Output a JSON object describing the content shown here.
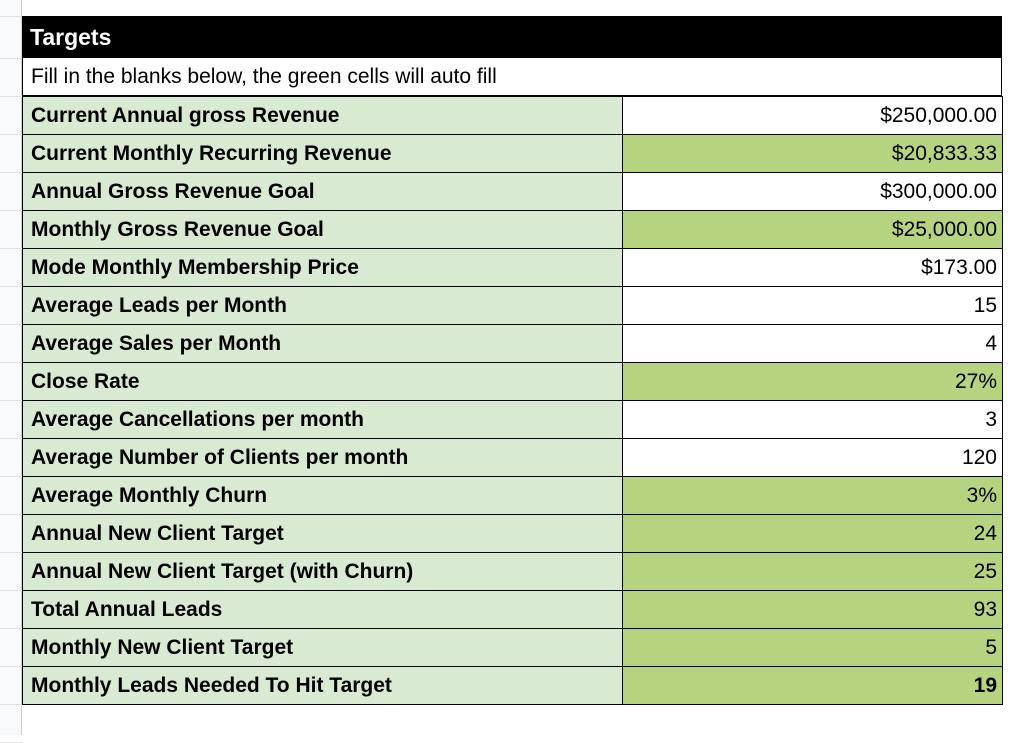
{
  "sheet": {
    "title": "Targets",
    "subtitle": "Fill in the blanks below, the green cells will auto fill",
    "colors": {
      "label_bg": "#d9ead3",
      "auto_bg": "#b6d37f",
      "header_bg": "#000000"
    },
    "rows": [
      {
        "label": "Current Annual gross Revenue",
        "value": "$250,000.00",
        "auto": false
      },
      {
        "label": "Current Monthly Recurring Revenue",
        "value": "$20,833.33",
        "auto": true
      },
      {
        "label": "Annual Gross Revenue Goal",
        "value": "$300,000.00",
        "auto": false
      },
      {
        "label": "Monthly Gross Revenue Goal",
        "value": "$25,000.00",
        "auto": true
      },
      {
        "label": "Mode Monthly Membership Price",
        "value": "$173.00",
        "auto": false
      },
      {
        "label": "Average Leads per Month",
        "value": "15",
        "auto": false
      },
      {
        "label": "Average Sales per Month",
        "value": "4",
        "auto": false
      },
      {
        "label": "Close Rate",
        "value": "27%",
        "auto": true
      },
      {
        "label": "Average Cancellations per month",
        "value": "3",
        "auto": false
      },
      {
        "label": "Average Number of Clients per month",
        "value": "120",
        "auto": false
      },
      {
        "label": "Average Monthly Churn",
        "value": "3%",
        "auto": true
      },
      {
        "label": "Annual New Client Target",
        "value": "24",
        "auto": true
      },
      {
        "label": "Annual New Client Target (with Churn)",
        "value": "25",
        "auto": true
      },
      {
        "label": "Total Annual Leads",
        "value": "93",
        "auto": true
      },
      {
        "label": "Monthly New Client Target",
        "value": "5",
        "auto": true
      },
      {
        "label": "Monthly Leads Needed To Hit Target",
        "value": "19",
        "auto": true,
        "bold": true
      }
    ]
  }
}
